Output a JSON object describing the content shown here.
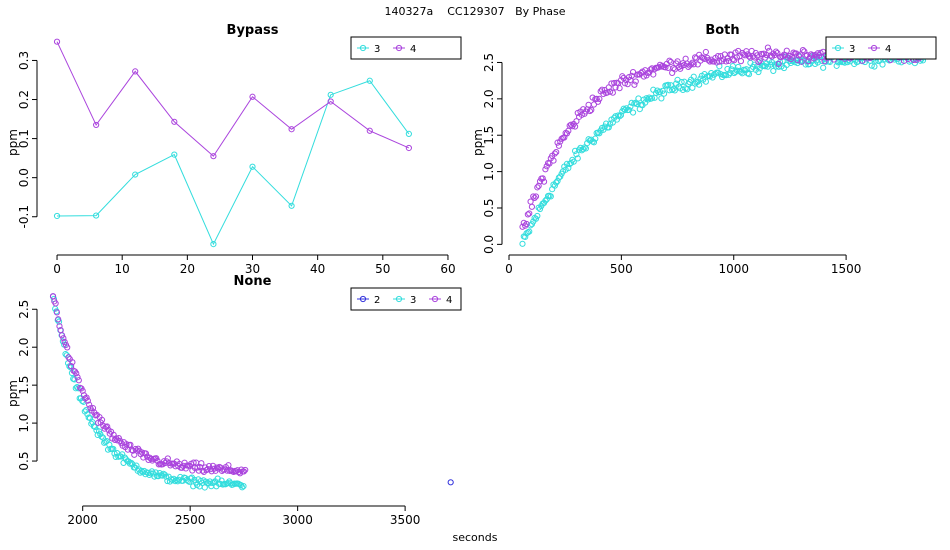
{
  "page_title": "140327a    CC129307   By Phase",
  "x_label": "seconds",
  "colors": {
    "2": "#3333dd",
    "3": "#33dddd",
    "4": "#aa44dd"
  },
  "chart_data": [
    {
      "type": "scatter",
      "title": "Bypass",
      "xlabel": "",
      "ylabel": "ppm",
      "xlim": [
        -2,
        62
      ],
      "ylim": [
        -0.18,
        0.36
      ],
      "xticks": [
        0,
        10,
        20,
        30,
        40,
        50,
        60
      ],
      "yticks": [
        -0.1,
        0.0,
        0.1,
        0.2,
        0.3
      ],
      "ytick_labels": [
        "-0.1",
        "0.0",
        "0.1",
        "0.2",
        "0.3"
      ],
      "lines": true,
      "legend": [
        "3",
        "4"
      ],
      "legend_position": "top-right",
      "series": [
        {
          "name": "3",
          "x": [
            0,
            6,
            12,
            18,
            24,
            30,
            36,
            42,
            48,
            54
          ],
          "y": [
            -0.098,
            -0.097,
            0.008,
            0.059,
            -0.17,
            0.028,
            -0.072,
            0.212,
            0.248,
            0.112
          ]
        },
        {
          "name": "4",
          "x": [
            0,
            6,
            12,
            18,
            24,
            30,
            36,
            42,
            48,
            54
          ],
          "y": [
            0.348,
            0.135,
            0.272,
            0.143,
            0.055,
            0.207,
            0.124,
            0.195,
            0.12,
            0.076
          ]
        }
      ]
    },
    {
      "type": "scatter",
      "title": "Both",
      "xlabel": "",
      "ylabel": "ppm",
      "xlim": [
        0,
        1900
      ],
      "ylim": [
        -0.05,
        2.85
      ],
      "xticks": [
        0,
        500,
        1000,
        1500
      ],
      "yticks": [
        0,
        0.5,
        1.0,
        1.5,
        2.0,
        2.5
      ],
      "ytick_labels": [
        "0.0",
        "0.5",
        "1.0",
        "1.5",
        "2.0",
        "2.5"
      ],
      "lines": false,
      "legend": [
        "3",
        "4"
      ],
      "legend_position": "top-right",
      "series": [
        {
          "name": "3",
          "x_start": 60,
          "x_step": 6,
          "count": 300,
          "y_max": 2.6,
          "y_start": 0.0,
          "tau": 380,
          "noise": 0.08
        },
        {
          "name": "4",
          "x_start": 60,
          "x_step": 6,
          "count": 300,
          "y_max": 2.62,
          "y_start": 0.15,
          "tau": 240,
          "noise": 0.09
        }
      ]
    },
    {
      "type": "scatter",
      "title": "None",
      "xlabel": "",
      "ylabel": "ppm",
      "xlim": [
        1820,
        3760
      ],
      "ylim": [
        0.0,
        2.78
      ],
      "xticks": [
        2000,
        2500,
        3000,
        3500
      ],
      "yticks": [
        0.5,
        1.0,
        1.5,
        2.0,
        2.5
      ],
      "ytick_labels": [
        "0.5",
        "1.0",
        "1.5",
        "2.0",
        "2.5"
      ],
      "lines": false,
      "legend": [
        "2",
        "3",
        "4"
      ],
      "legend_position": "top-right",
      "series": [
        {
          "name": "2",
          "x": [
            1862,
            3712
          ],
          "y": [
            2.67,
            0.22
          ]
        },
        {
          "name": "3",
          "x_start": 1866,
          "x_step": 6,
          "count": 148,
          "y_max": 2.62,
          "y_end": 0.18,
          "tau": 165,
          "noise": 0.05
        },
        {
          "name": "4",
          "x_start": 1862,
          "x_step": 6,
          "count": 150,
          "y_max": 2.68,
          "y_end": 0.36,
          "tau": 175,
          "noise": 0.06
        }
      ]
    }
  ]
}
